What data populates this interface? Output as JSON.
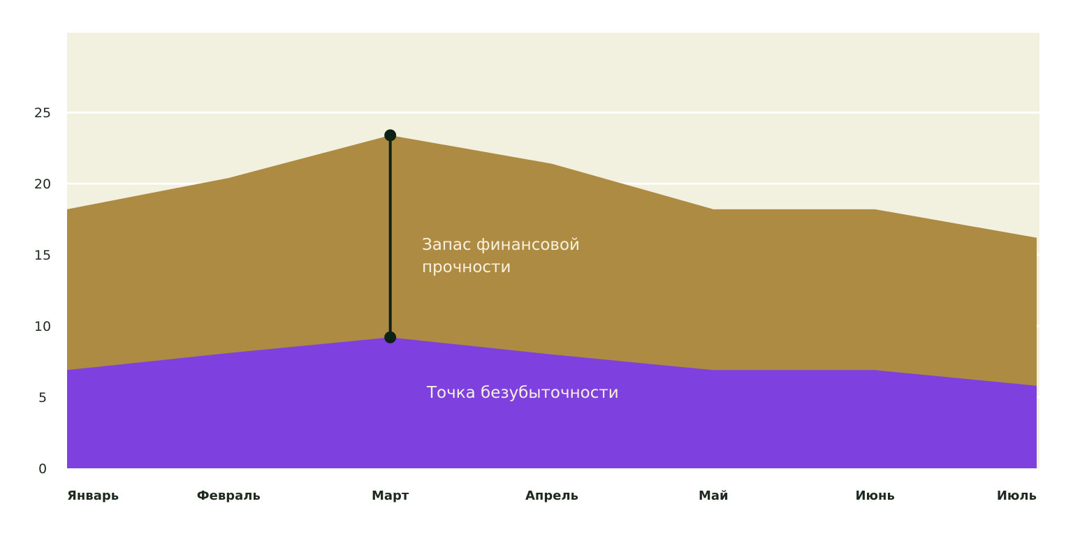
{
  "colors": {
    "plot_background": "#f2f0df",
    "grid": "#ffffff",
    "margin_area": "#ae8b42",
    "breakeven_area": "#7f40e0",
    "marker": "#0d2214",
    "annotation_text": "#f6f1de",
    "tick_text": "#1f2a1f"
  },
  "chart_data": {
    "type": "area",
    "categories": [
      "Январь",
      "Февраль",
      "Март",
      "Апрель",
      "Май",
      "Июнь",
      "Июль"
    ],
    "series": [
      {
        "name": "Точка безубыточности",
        "values": [
          6.9,
          8.1,
          9.2,
          8.0,
          6.9,
          6.9,
          5.8
        ]
      },
      {
        "name": "Запас финансовой прочности",
        "values": [
          18.2,
          20.4,
          23.4,
          21.4,
          18.2,
          18.2,
          16.2
        ]
      }
    ],
    "annotations": [
      {
        "text_lines": [
          "Запас финансовой",
          "прочности"
        ],
        "category": "Апрель"
      },
      {
        "text": "Точка безубыточности",
        "category": "Апрель"
      }
    ],
    "marker_line": {
      "category": "Март",
      "from_value": 9.2,
      "to_value": 23.4
    },
    "yticks": [
      0,
      5,
      10,
      15,
      20,
      25
    ],
    "ylim": [
      0,
      30.6
    ],
    "grid": true,
    "legend": "none",
    "title": "",
    "xlabel": "",
    "ylabel": ""
  }
}
